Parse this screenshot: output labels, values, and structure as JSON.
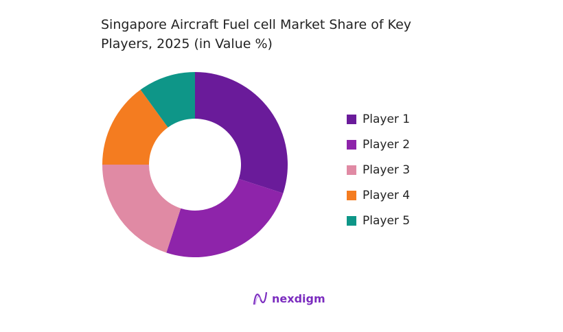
{
  "chart_data": {
    "type": "pie",
    "donut": true,
    "title": "Singapore Aircraft Fuel cell  Market Share of Key Players, 2025 (in Value %)",
    "categories": [
      "Player 1",
      "Player 2",
      "Player 3",
      "Player 4",
      "Player 5"
    ],
    "values": [
      30,
      25,
      20,
      15,
      10
    ],
    "colors": [
      "#6a1b9a",
      "#8e24aa",
      "#e08aa4",
      "#f47c20",
      "#0e9688"
    ],
    "legend_placement": "right"
  },
  "brand": {
    "name": "nexdigm"
  }
}
